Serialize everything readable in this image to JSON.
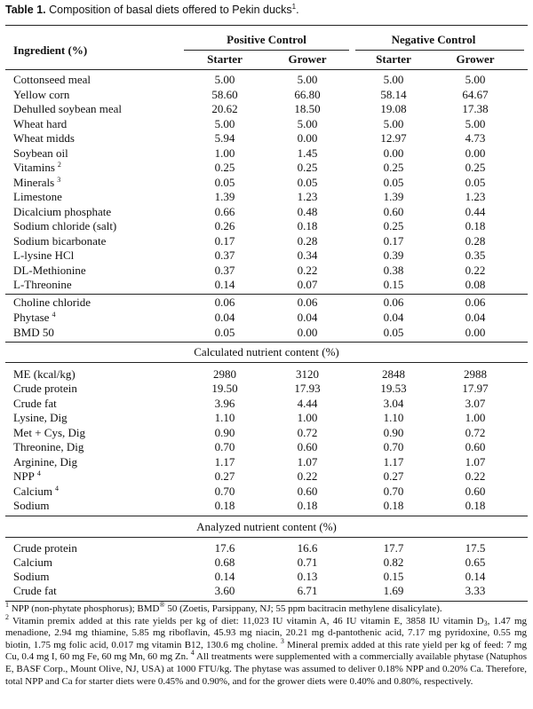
{
  "title": {
    "label": "Table 1.",
    "text": "Composition of basal diets offered to Pekin ducks",
    "note": "1",
    "end": "."
  },
  "table": {
    "header": {
      "ingredient": "Ingredient (%)",
      "groups": [
        "Positive Control",
        "Negative Control"
      ],
      "phases": [
        "Starter",
        "Grower",
        "Starter",
        "Grower"
      ]
    },
    "sections": [
      {
        "rows": [
          {
            "label": "Cottonseed meal",
            "values": [
              "5.00",
              "5.00",
              "5.00",
              "5.00"
            ]
          },
          {
            "label": "Yellow corn",
            "values": [
              "58.60",
              "66.80",
              "58.14",
              "64.67"
            ]
          },
          {
            "label": "Dehulled soybean meal",
            "values": [
              "20.62",
              "18.50",
              "19.08",
              "17.38"
            ]
          },
          {
            "label": "Wheat hard",
            "values": [
              "5.00",
              "5.00",
              "5.00",
              "5.00"
            ]
          },
          {
            "label": "Wheat midds",
            "values": [
              "5.94",
              "0.00",
              "12.97",
              "4.73"
            ]
          },
          {
            "label": "Soybean oil",
            "values": [
              "1.00",
              "1.45",
              "0.00",
              "0.00"
            ]
          },
          {
            "label": "Vitamins",
            "note": "2",
            "values": [
              "0.25",
              "0.25",
              "0.25",
              "0.25"
            ]
          },
          {
            "label": "Minerals",
            "note": "3",
            "values": [
              "0.05",
              "0.05",
              "0.05",
              "0.05"
            ]
          },
          {
            "label": "Limestone",
            "values": [
              "1.39",
              "1.23",
              "1.39",
              "1.23"
            ]
          },
          {
            "label": "Dicalcium phosphate",
            "values": [
              "0.66",
              "0.48",
              "0.60",
              "0.44"
            ]
          },
          {
            "label": "Sodium chloride (salt)",
            "values": [
              "0.26",
              "0.18",
              "0.25",
              "0.18"
            ]
          },
          {
            "label": "Sodium bicarbonate",
            "values": [
              "0.17",
              "0.28",
              "0.17",
              "0.28"
            ]
          },
          {
            "label": "L-lysine HCl",
            "values": [
              "0.37",
              "0.34",
              "0.39",
              "0.35"
            ]
          },
          {
            "label": "DL-Methionine",
            "values": [
              "0.37",
              "0.22",
              "0.38",
              "0.22"
            ]
          },
          {
            "label": "L-Threonine",
            "values": [
              "0.14",
              "0.07",
              "0.15",
              "0.08"
            ]
          }
        ]
      },
      {
        "rows": [
          {
            "label": "Choline chloride",
            "values": [
              "0.06",
              "0.06",
              "0.06",
              "0.06"
            ]
          },
          {
            "label": "Phytase",
            "note": "4",
            "values": [
              "0.04",
              "0.04",
              "0.04",
              "0.04"
            ]
          },
          {
            "label": "BMD 50",
            "values": [
              "0.05",
              "0.00",
              "0.05",
              "0.00"
            ]
          }
        ]
      },
      {
        "heading": "Calculated nutrient content (%)",
        "rows": [
          {
            "label": "ME (kcal/kg)",
            "values": [
              "2980",
              "3120",
              "2848",
              "2988"
            ]
          },
          {
            "label": "Crude protein",
            "values": [
              "19.50",
              "17.93",
              "19.53",
              "17.97"
            ]
          },
          {
            "label": "Crude fat",
            "values": [
              "3.96",
              "4.44",
              "3.04",
              "3.07"
            ]
          },
          {
            "label": "Lysine, Dig",
            "values": [
              "1.10",
              "1.00",
              "1.10",
              "1.00"
            ]
          },
          {
            "label": "Met + Cys, Dig",
            "values": [
              "0.90",
              "0.72",
              "0.90",
              "0.72"
            ]
          },
          {
            "label": "Threonine, Dig",
            "values": [
              "0.70",
              "0.60",
              "0.70",
              "0.60"
            ]
          },
          {
            "label": "Arginine, Dig",
            "values": [
              "1.17",
              "1.07",
              "1.17",
              "1.07"
            ]
          },
          {
            "label": "NPP",
            "note": "4",
            "values": [
              "0.27",
              "0.22",
              "0.27",
              "0.22"
            ]
          },
          {
            "label": "Calcium",
            "note": "4",
            "values": [
              "0.70",
              "0.60",
              "0.70",
              "0.60"
            ]
          },
          {
            "label": "Sodium",
            "values": [
              "0.18",
              "0.18",
              "0.18",
              "0.18"
            ]
          }
        ]
      },
      {
        "heading": "Analyzed nutrient content (%)",
        "rows": [
          {
            "label": "Crude protein",
            "values": [
              "17.6",
              "16.6",
              "17.7",
              "17.5"
            ]
          },
          {
            "label": "Calcium",
            "values": [
              "0.68",
              "0.71",
              "0.82",
              "0.65"
            ]
          },
          {
            "label": "Sodium",
            "values": [
              "0.14",
              "0.13",
              "0.15",
              "0.14"
            ]
          },
          {
            "label": "Crude fat",
            "values": [
              "3.60",
              "6.71",
              "1.69",
              "3.33"
            ]
          }
        ]
      }
    ]
  },
  "footnotes": [
    [
      {
        "sup": "1"
      },
      {
        "text": " NPP (non-phytate phosphorus); BMD"
      },
      {
        "sup": "®"
      },
      {
        "text": " 50 (Zoetis, Parsippany, NJ; 55 ppm bacitracin methylene disalicylate)."
      }
    ],
    [
      {
        "sup": "2"
      },
      {
        "text": " Vitamin premix added at this rate yields per kg of diet: 11,023 IU vitamin A, 46 IU vitamin E, 3858 IU vitamin D"
      },
      {
        "sub": "3"
      },
      {
        "text": ", 1.47 mg menadione, 2.94 mg thiamine, 5.85 mg riboflavin, 45.93 mg niacin, 20.21 mg d-pantothenic acid, 7.17 mg pyridoxine, 0.55 mg biotin, 1.75 mg folic acid, 0.017 mg vitamin B12, 130.6 mg choline. "
      },
      {
        "sup": "3"
      },
      {
        "text": " Mineral premix added at this rate yield per kg of feed: 7 mg Cu, 0.4 mg I, 60 mg Fe, 60 mg Mn, 60 mg Zn. "
      },
      {
        "sup": "4"
      },
      {
        "text": " All treatments were supplemented with a commercially available phytase (Natuphos E, BASF Corp., Mount Olive, NJ, USA) at 1000 FTU/kg. The phytase was assumed to deliver 0.18% NPP and 0.20% Ca. Therefore, total NPP and Ca for starter diets were 0.45% and 0.90%, and for the grower diets were 0.40% and 0.80%, respectively."
      }
    ]
  ]
}
